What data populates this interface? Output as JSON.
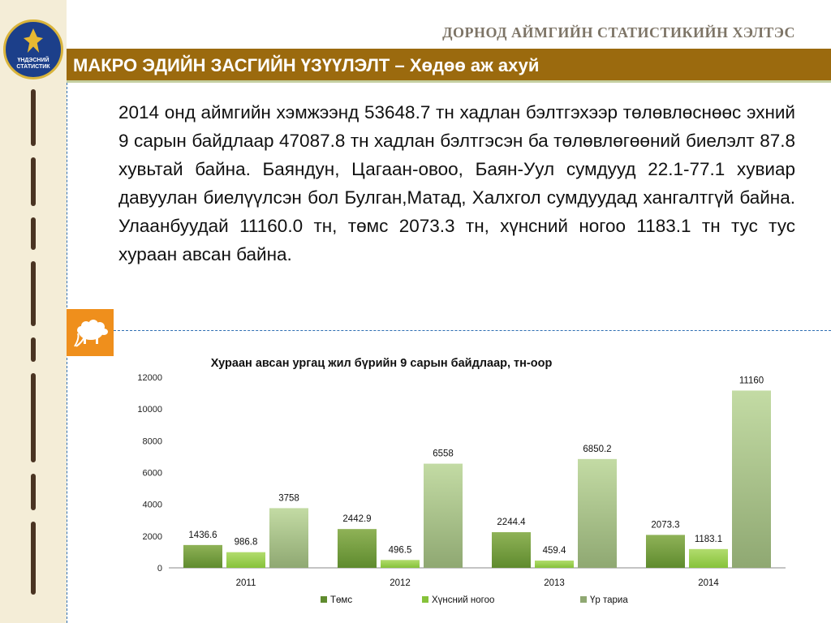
{
  "header": {
    "org_title": "ДОРНОД АЙМГИЙН СТАТИСТИКИЙН ХЭЛТЭС",
    "logo_text": "ҮНДЭСНИЙ СТАТИСТИК",
    "banner_title": "МАКРО ЭДИЙН ЗАСГИЙН ҮЗҮҮЛЭЛТ – Хөдөө аж ахуй"
  },
  "body": {
    "paragraph": "2014 онд аймгийн хэмжээнд 53648.7 тн хадлан бэлтгэхээр төлөвлөснөөс эхний 9 сарын байдлаар 47087.8 тн хадлан бэлтгэсэн ба төлөвлөгөөний биелэлт 87.8 хувьтай байна. Баяндун, Цагаан-овоо, Баян-Уул сумдууд 22.1-77.1 хувиар давуулан биелүүлсэн бол Булган,Матад, Халхгол сумдуудад хангалтгүй байна.  Улаанбуудай  11160.0 тн, төмс 2073.3 тн, хүнсний ногоо 1183.1 тн тус тус хураан авсан байна."
  },
  "icons": {
    "section_icon": "sheep-icon"
  },
  "chart_data": {
    "type": "bar",
    "title": "Хураан авсан ургац жил бүрийн 9 сарын байдлаар,  тн-оор",
    "categories": [
      "2011",
      "2012",
      "2013",
      "2014"
    ],
    "ylim": [
      0,
      12000
    ],
    "yticks": [
      "0",
      "2000",
      "4000",
      "6000",
      "8000",
      "10000",
      "12000"
    ],
    "legend_position": "bottom",
    "grid": false,
    "series": [
      {
        "name": "Төмс",
        "values": [
          1436.6,
          2442.9,
          2244.4,
          2073.3
        ],
        "labels": [
          "1436.6",
          "2442.9",
          "2244.4",
          "2073.3"
        ],
        "color": "#5f8b2e",
        "color_light": "#8fb257"
      },
      {
        "name": "Хүнсний ногоо",
        "values": [
          986.8,
          496.5,
          459.4,
          1183.1
        ],
        "labels": [
          "986.8",
          "496.5",
          "459.4",
          "1183.1"
        ],
        "color": "#86c23a",
        "color_light": "#b2dc6e"
      },
      {
        "name": "Үр тариа",
        "values": [
          3758,
          6558,
          6850.2,
          11160
        ],
        "labels": [
          "3758",
          "6558",
          "6850.2",
          "11160"
        ],
        "color": "#8fa872",
        "color_light": "#c3dba4"
      }
    ]
  }
}
